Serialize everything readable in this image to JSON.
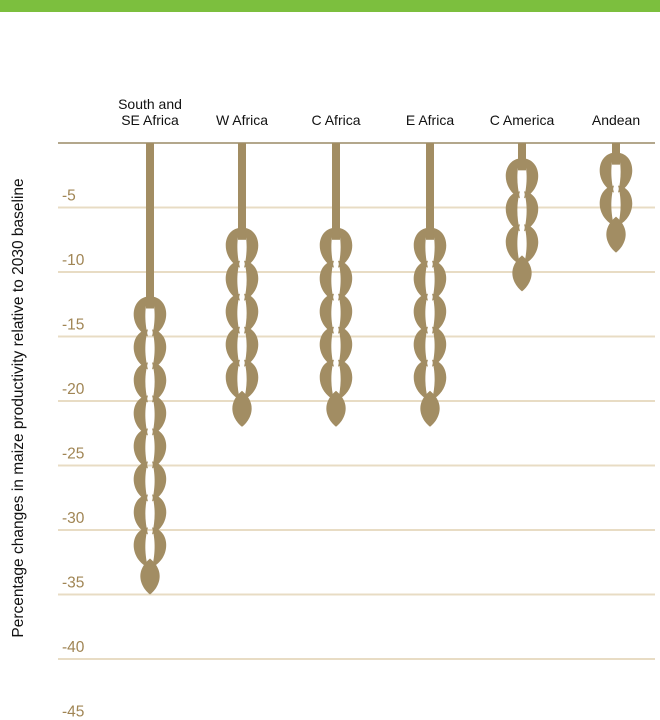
{
  "chart_data": {
    "type": "bar",
    "orientation": "vertical-downward",
    "ylabel": "Percentage changes in maize productivity relative to 2030 baseline",
    "y_ticks": [
      "-5",
      "-10",
      "-15",
      "-20",
      "-25",
      "-30",
      "-35",
      "-40",
      "-45"
    ],
    "ylim": [
      0,
      -48
    ],
    "grid": true,
    "categories": [
      {
        "lines": [
          "South and",
          "SE Africa"
        ],
        "value": -35
      },
      {
        "lines": [
          "W Africa"
        ],
        "value": -22
      },
      {
        "lines": [
          "C Africa"
        ],
        "value": -22
      },
      {
        "lines": [
          "E Africa"
        ],
        "value": -22
      },
      {
        "lines": [
          "C America"
        ],
        "value": -11.5
      },
      {
        "lines": [
          "Andean"
        ],
        "value": -8.5
      }
    ],
    "marker": "maize-ear-icon"
  },
  "colors": {
    "accent_bar": "#7cbf3e",
    "grid": "#e8dcc4",
    "axis": "#9a8a66",
    "tick_label": "#a08554",
    "ear": "#a28d63"
  }
}
